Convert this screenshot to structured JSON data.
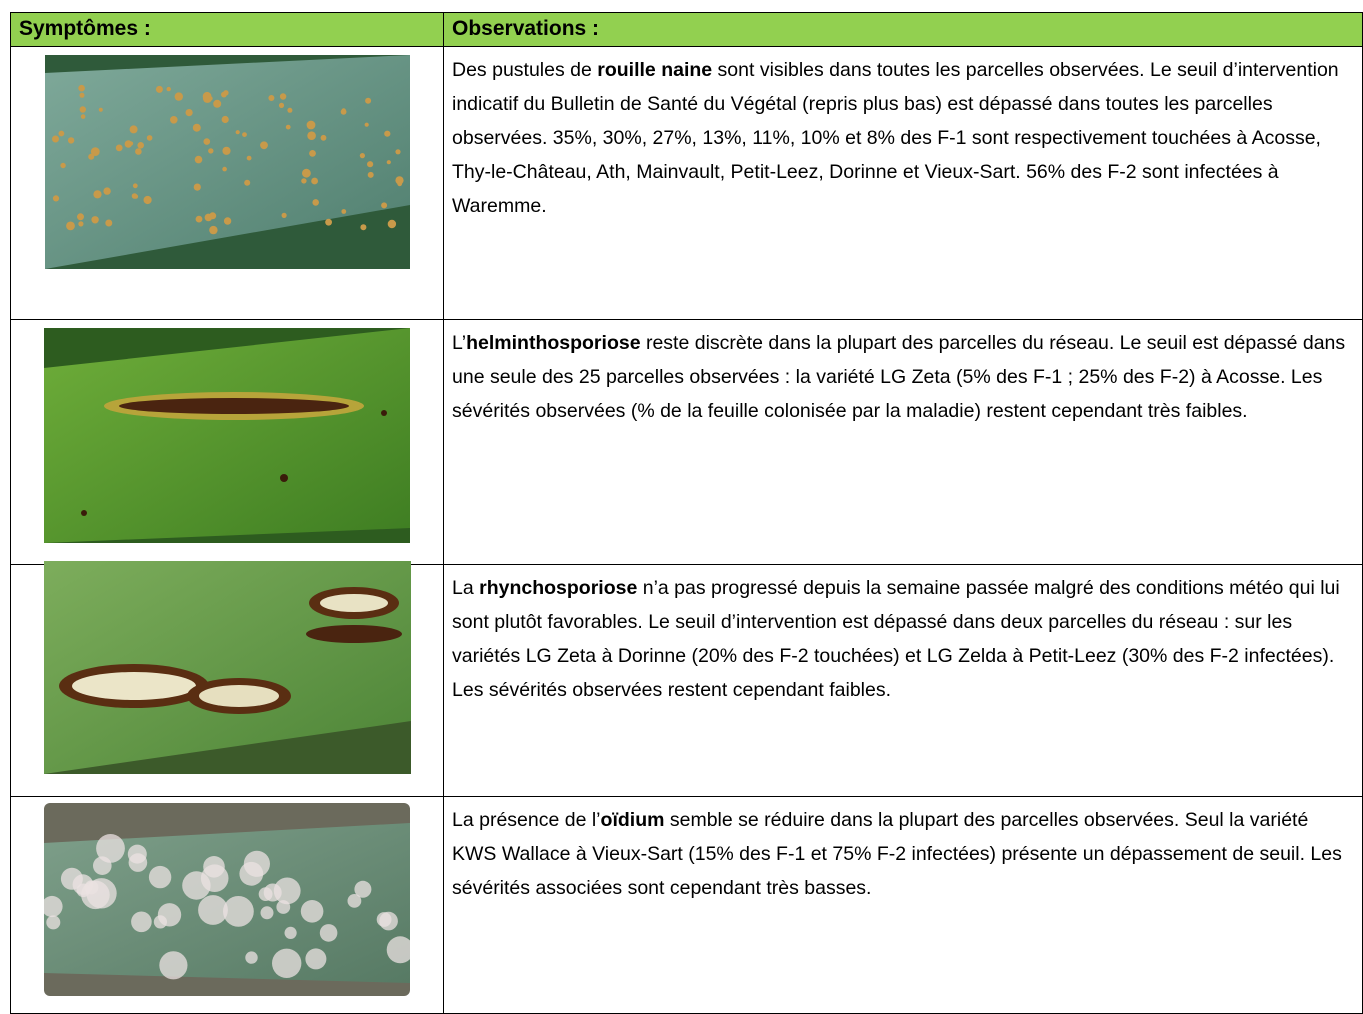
{
  "table": {
    "header": [
      "Symptômes :",
      "Observations :"
    ],
    "rows": [
      {
        "before": "Des pustules de ",
        "bold": "rouille naine",
        "after": " sont visibles dans toutes les parcelles observées. Le seuil d’intervention indicatif du Bulletin de Santé du Végétal (repris plus bas) est dépassé dans toutes les parcelles observées. 35%, 30%, 27%, 13%, 11%, 10% et 8% des F-1 sont respectivement touchées à Acosse, Thy-le-Château, Ath, Mainvault, Petit-Leez, Dorinne et Vieux-Sart. 56% des F-2 sont infectées à Waremme."
      },
      {
        "before": "L’",
        "bold": "helminthosporiose",
        "after": " reste discrète dans la plupart des parcelles du réseau. Le seuil est dépassé dans une seule des 25 parcelles observées : la variété LG Zeta (5% des F-1 ; 25% des F-2) à Acosse. Les sévérités observées (% de la feuille colonisée par la maladie) restent cependant très faibles."
      },
      {
        "before": "La ",
        "bold": "rhynchosporiose",
        "after": " n’a pas progressé depuis la semaine passée malgré des conditions météo qui lui sont plutôt favorables. Le seuil d’intervention est dépassé dans deux parcelles du réseau : sur les variétés LG Zeta à Dorinne (20% des F-2 touchées) et LG Zelda à Petit-Leez (30% des F-2 infectées). Les sévérités observées restent cependant faibles."
      },
      {
        "before": "La présence de l’",
        "bold": "oïdium",
        "after": " semble se réduire dans la plupart des parcelles observées. Seul la variété KWS Wallace à Vieux-Sart (15% des F-1 et 75% F-2 infectées) présente un dépassement de seuil. Les sévérités associées sont cependant très basses."
      }
    ]
  }
}
